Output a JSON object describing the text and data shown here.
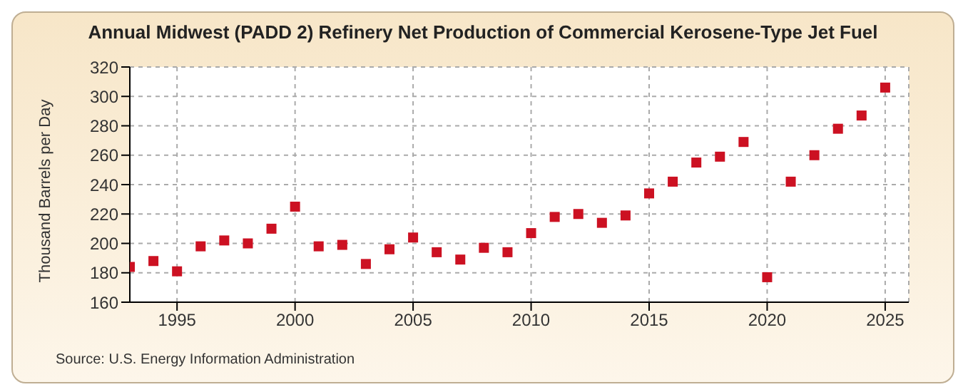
{
  "chart_data": {
    "type": "scatter",
    "title": "Annual Midwest (PADD 2) Refinery Net Production of Commercial Kerosene-Type Jet Fuel",
    "ylabel": "Thousand Barrels per Day",
    "annotations": [
      "Source: U.S. Energy Information Administration"
    ],
    "x": [
      1993,
      1994,
      1995,
      1996,
      1997,
      1998,
      1999,
      2000,
      2001,
      2002,
      2003,
      2004,
      2005,
      2006,
      2007,
      2008,
      2009,
      2010,
      2011,
      2012,
      2013,
      2014,
      2015,
      2016,
      2017,
      2018,
      2019,
      2020,
      2021,
      2022,
      2023,
      2024,
      2025
    ],
    "series": [
      {
        "color": "#cc1122",
        "values": [
          184,
          188,
          181,
          198,
          202,
          200,
          210,
          225,
          198,
          199,
          186,
          196,
          204,
          194,
          189,
          197,
          194,
          207,
          218,
          220,
          214,
          219,
          234,
          242,
          255,
          259,
          269,
          177,
          242,
          260,
          278,
          287,
          306
        ]
      }
    ],
    "xlim": [
      1993,
      2026
    ],
    "xticks": [
      1995,
      2000,
      2005,
      2010,
      2015,
      2020,
      2025
    ],
    "ylim": [
      160,
      320
    ],
    "yticks": [
      160,
      180,
      200,
      220,
      240,
      260,
      280,
      300,
      320
    ],
    "grid": true,
    "marker": "square",
    "legend": false
  }
}
